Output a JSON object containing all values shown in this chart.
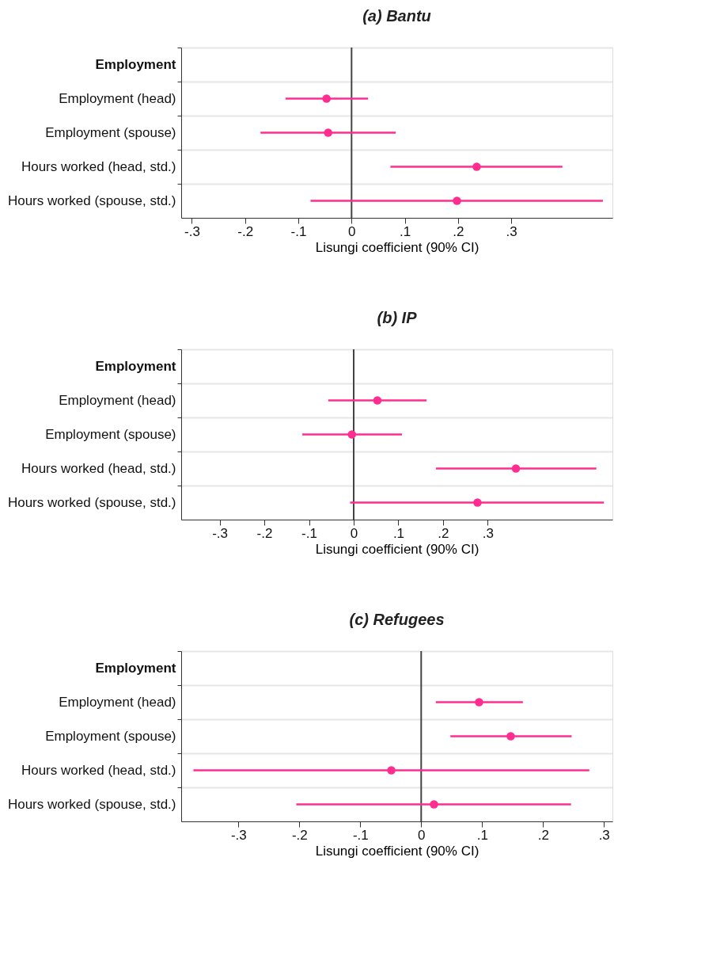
{
  "chart_data": [
    {
      "type": "scatter",
      "orientation": "horizontal",
      "title": "(a) Bantu",
      "xlabel": "Lisungi coefficient (90% CI)",
      "marker": "circle",
      "grid": "y",
      "categories": [
        "Employment",
        "Employment (head)",
        "Employment (spouse)",
        "Hours worked (head, std.)",
        "Hours worked (spouse, std.)"
      ],
      "series": [
        {
          "color": "#ff2d8f",
          "values": [
            null,
            -0.047,
            -0.044,
            0.235,
            0.198
          ],
          "errors": [
            null,
            [
              -0.124,
              0.031
            ],
            [
              -0.171,
              0.083
            ],
            [
              0.073,
              0.396
            ],
            [
              -0.077,
              0.472
            ]
          ]
        }
      ],
      "xlim": [
        -0.32,
        0.49
      ],
      "xticks": [
        {
          "value": -0.3,
          "label": "-.3"
        },
        {
          "value": -0.2,
          "label": "-.2"
        },
        {
          "value": -0.1,
          "label": "-.1"
        },
        0,
        {
          "value": 0.1,
          "label": ".1"
        },
        {
          "value": 0.2,
          "label": ".2"
        },
        {
          "value": 0.3,
          "label": ".3"
        }
      ],
      "ref_lines": [
        {
          "axis": "x",
          "value": 0,
          "color": "#444444"
        }
      ]
    },
    {
      "type": "scatter",
      "orientation": "horizontal",
      "title": "(b) IP",
      "xlabel": "Lisungi coefficient (90% CI)",
      "marker": "circle",
      "grid": "y",
      "categories": [
        "Employment",
        "Employment (head)",
        "Employment (spouse)",
        "Hours worked (head, std.)",
        "Hours worked (spouse, std.)"
      ],
      "series": [
        {
          "color": "#ff2d8f",
          "values": [
            null,
            0.053,
            -0.004,
            0.363,
            0.277
          ],
          "errors": [
            null,
            [
              -0.057,
              0.163
            ],
            [
              -0.115,
              0.108
            ],
            [
              0.184,
              0.543
            ],
            [
              -0.008,
              0.56
            ]
          ]
        }
      ],
      "xlim": [
        -0.386,
        0.579
      ],
      "xticks": [
        {
          "value": -0.3,
          "label": "-.3"
        },
        {
          "value": -0.2,
          "label": "-.2"
        },
        {
          "value": -0.1,
          "label": "-.1"
        },
        0,
        {
          "value": 0.1,
          "label": ".1"
        },
        {
          "value": 0.2,
          "label": ".2"
        },
        {
          "value": 0.3,
          "label": ".3"
        }
      ],
      "ref_lines": [
        {
          "axis": "x",
          "value": 0,
          "color": "#444444"
        }
      ]
    },
    {
      "type": "scatter",
      "orientation": "horizontal",
      "title": "(c) Refugees",
      "xlabel": "Lisungi coefficient (90% CI)",
      "marker": "circle",
      "grid": "y",
      "categories": [
        "Employment",
        "Employment (head)",
        "Employment (spouse)",
        "Hours worked (head, std.)",
        "Hours worked (spouse, std.)"
      ],
      "series": [
        {
          "color": "#ff2d8f",
          "values": [
            null,
            0.095,
            0.147,
            -0.049,
            0.021
          ],
          "errors": [
            null,
            [
              0.024,
              0.167
            ],
            [
              0.048,
              0.247
            ],
            [
              -0.374,
              0.276
            ],
            [
              -0.205,
              0.246
            ]
          ]
        }
      ],
      "xlim": [
        -0.394,
        0.314
      ],
      "xticks": [
        {
          "value": -0.3,
          "label": "-.3"
        },
        {
          "value": -0.2,
          "label": "-.2"
        },
        {
          "value": -0.1,
          "label": "-.1"
        },
        0,
        {
          "value": 0.1,
          "label": ".1"
        },
        {
          "value": 0.2,
          "label": ".2"
        },
        {
          "value": 0.3,
          "label": ".3"
        }
      ],
      "ref_lines": [
        {
          "axis": "x",
          "value": 0,
          "color": "#444444"
        }
      ]
    }
  ]
}
